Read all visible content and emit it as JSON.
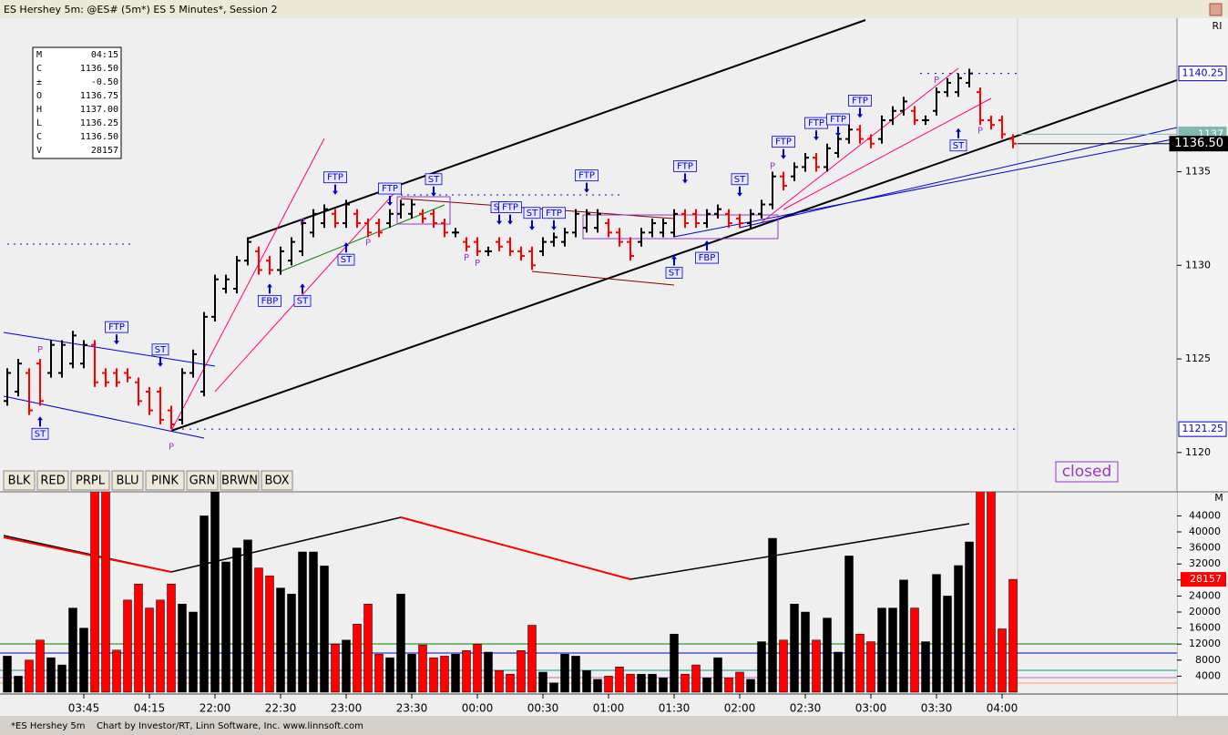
{
  "window_title": "ES Hershey 5m: @ES# (5m*) ES 5 Minutes*, Session 2",
  "tab": "*ES Hershey 5m",
  "credit": "Chart by Investor/RT, Linn Software, Inc. www.linnsoft.com",
  "pane_tags": [
    "RI",
    "M"
  ],
  "status": "closed",
  "buttons": [
    "BLK",
    "RED",
    "PRPL",
    "BLU",
    "PINK",
    "GRN",
    "BRWN",
    "BOX"
  ],
  "info_box": [
    [
      "M",
      "04:15"
    ],
    [
      "C",
      "1136.50"
    ],
    [
      "±",
      "-0.50"
    ],
    [
      "O",
      "1136.75"
    ],
    [
      "H",
      "1137.00"
    ],
    [
      "L",
      "1136.25"
    ],
    [
      "C",
      "1136.50"
    ],
    [
      "V",
      "28157"
    ]
  ],
  "chart_data": [
    {
      "type": "ohlc",
      "up_color": "#000000",
      "down_color": "#ff0000",
      "ylim": [
        1117.9,
        1143.2
      ],
      "yticks": [
        1120,
        1125,
        1130,
        1135
      ],
      "open": [
        1122.75,
        1123.25,
        1124.25,
        1124.75,
        1124.25,
        1124.25,
        1124.75,
        1124.75,
        1125.75,
        1124.25,
        1124.25,
        1124.25,
        1123.75,
        1123.25,
        1123.25,
        1122.25,
        1121.75,
        1124.25,
        1123.25,
        1127.25,
        1128.75,
        1128.75,
        1130.25,
        1130.75,
        1130.25,
        1129.75,
        1130.25,
        1130.75,
        1131.75,
        1132.25,
        1132.75,
        1132.25,
        1132.75,
        1132.25,
        1132.25,
        1132.25,
        1132.75,
        1132.75,
        1132.75,
        1132.75,
        1132.25,
        1131.75,
        1131.25,
        1131.25,
        1130.75,
        1131.25,
        1131.25,
        1130.75,
        1130.75,
        1130.75,
        1131.25,
        1131.25,
        1131.75,
        1132,
        1132,
        1132.25,
        1131.75,
        1131.25,
        1131.25,
        1131.75,
        1131.75,
        1131.75,
        1132.75,
        1132.75,
        1132.25,
        1132.75,
        1132.75,
        1132.5,
        1132.25,
        1132.75,
        1133.25,
        1134.75,
        1134.75,
        1135.25,
        1135.75,
        1135.25,
        1136,
        1136.75,
        1137.25,
        1136.75,
        1136.75,
        1137.75,
        1138.25,
        1138.25,
        1137.75,
        1138.25,
        1139.25,
        1139.25,
        1139.75,
        1139.25,
        1137.75,
        1137.75,
        1136.75
      ],
      "high": [
        1124.5,
        1125,
        1124.5,
        1125,
        1126,
        1126,
        1126.5,
        1126,
        1126,
        1124.5,
        1124.5,
        1124.5,
        1124,
        1123.5,
        1123.5,
        1122.5,
        1124.5,
        1125.5,
        1127.5,
        1129.5,
        1129.5,
        1130.5,
        1131.5,
        1131,
        1130.5,
        1131,
        1131.5,
        1132.5,
        1133,
        1133.25,
        1133,
        1133.5,
        1133,
        1132.5,
        1132.5,
        1133,
        1133.5,
        1133.5,
        1133,
        1133,
        1132.5,
        1132,
        1131.5,
        1131.5,
        1131,
        1131.5,
        1131.5,
        1131,
        1131,
        1131.5,
        1131.75,
        1132,
        1133,
        1133,
        1133,
        1132.5,
        1132,
        1131.5,
        1132,
        1132.5,
        1132.5,
        1133,
        1133,
        1133,
        1133,
        1133.25,
        1133,
        1132.75,
        1133,
        1133.5,
        1135,
        1135,
        1135.5,
        1136,
        1136,
        1136.5,
        1137,
        1137.5,
        1137.5,
        1137,
        1138,
        1138.5,
        1139,
        1138.5,
        1138,
        1139.5,
        1140,
        1140.25,
        1140.5,
        1139.5,
        1138,
        1138,
        1137
      ],
      "low": [
        1122.5,
        1123,
        1122,
        1122.5,
        1124,
        1124,
        1124.5,
        1124.5,
        1123.5,
        1123.5,
        1123.5,
        1123.75,
        1122.5,
        1122,
        1121.5,
        1121.25,
        1121.5,
        1124,
        1123,
        1127,
        1128.5,
        1128.5,
        1130,
        1129.5,
        1129.5,
        1129.5,
        1130,
        1130.5,
        1131.5,
        1132,
        1132,
        1132,
        1132,
        1131.5,
        1131.5,
        1132,
        1132.5,
        1132.5,
        1132.25,
        1132,
        1131.5,
        1131.5,
        1130.75,
        1130.5,
        1130.5,
        1130.75,
        1130.5,
        1130.25,
        1129.75,
        1130.5,
        1131,
        1131,
        1131.5,
        1131.75,
        1131.75,
        1131.5,
        1131,
        1130.25,
        1131,
        1131.5,
        1131.5,
        1131.5,
        1132,
        1132,
        1132,
        1132.5,
        1132,
        1132,
        1132,
        1132.5,
        1133,
        1134,
        1134.5,
        1135,
        1135,
        1135,
        1135.75,
        1136.5,
        1136.5,
        1136.25,
        1136.5,
        1137.5,
        1138,
        1137.5,
        1137.5,
        1138,
        1139,
        1139,
        1139.5,
        1137.5,
        1137.25,
        1136.75,
        1136.25
      ],
      "close": [
        1124.25,
        1124.75,
        1122.25,
        1122.75,
        1125.75,
        1125.75,
        1126.25,
        1125.75,
        1123.75,
        1123.75,
        1123.75,
        1124,
        1122.75,
        1122.25,
        1121.75,
        1121.5,
        1124.25,
        1125.25,
        1127.25,
        1129.25,
        1129.25,
        1130.25,
        1131.25,
        1129.75,
        1129.75,
        1130.75,
        1131.25,
        1132.25,
        1132.75,
        1133,
        1132.25,
        1133.25,
        1132.25,
        1131.75,
        1131.75,
        1132.75,
        1133.25,
        1133.25,
        1132.5,
        1132.25,
        1131.75,
        1131.75,
        1131,
        1130.75,
        1130.75,
        1131,
        1130.75,
        1130.5,
        1130,
        1131.25,
        1131.5,
        1131.75,
        1132.75,
        1132.75,
        1132.75,
        1131.75,
        1131.25,
        1130.5,
        1131.75,
        1132.25,
        1132.25,
        1132.75,
        1132.25,
        1132.25,
        1132.75,
        1133,
        1132.25,
        1132.25,
        1132.75,
        1133.25,
        1134.75,
        1134.25,
        1135.25,
        1135.75,
        1135.25,
        1136.25,
        1136.75,
        1137.25,
        1136.75,
        1136.5,
        1137.75,
        1138.25,
        1138.75,
        1137.75,
        1137.75,
        1139.25,
        1139.75,
        1140,
        1140.25,
        1137.75,
        1137.5,
        1137,
        1136.5
      ],
      "price_markers": [
        {
          "value": 1140.25,
          "label": "1140.25"
        },
        {
          "value": 1137,
          "label": "1137"
        },
        {
          "value": 1136.5,
          "label": "1136.50"
        },
        {
          "value": 1121.25,
          "label": "1121.25"
        }
      ],
      "annotations": [
        {
          "text": "ST",
          "bar": 3,
          "price": 1121.0,
          "arrow": "up"
        },
        {
          "text": "P",
          "bar": 3,
          "price": 1125.5
        },
        {
          "text": "FTP",
          "bar": 10,
          "price": 1126.7,
          "arrow": "down"
        },
        {
          "text": "ST",
          "bar": 14,
          "price": 1125.5,
          "arrow": "down"
        },
        {
          "text": "P",
          "bar": 15,
          "price": 1120.3
        },
        {
          "text": "FBP",
          "bar": 24,
          "price": 1128.1,
          "arrow": "up"
        },
        {
          "text": "ST",
          "bar": 27,
          "price": 1128.1,
          "arrow": "up"
        },
        {
          "text": "P",
          "bar": 27,
          "price": 1132.3
        },
        {
          "text": "FTP",
          "bar": 30,
          "price": 1134.7,
          "arrow": "down"
        },
        {
          "text": "ST",
          "bar": 31,
          "price": 1130.3,
          "arrow": "up"
        },
        {
          "text": "P",
          "bar": 33,
          "price": 1131.2
        },
        {
          "text": "FTP",
          "bar": 35,
          "price": 1134.1,
          "arrow": "down"
        },
        {
          "text": "ST",
          "bar": 39,
          "price": 1134.6,
          "arrow": "down"
        },
        {
          "text": "P",
          "bar": 42,
          "price": 1130.4
        },
        {
          "text": "P",
          "bar": 43,
          "price": 1130.1
        },
        {
          "text": "ST",
          "bar": 45,
          "price": 1133.1,
          "arrow": "down"
        },
        {
          "text": "FTP",
          "bar": 46,
          "price": 1133.1,
          "arrow": "down"
        },
        {
          "text": "ST",
          "bar": 48,
          "price": 1132.8,
          "arrow": "down"
        },
        {
          "text": "FTP",
          "bar": 50,
          "price": 1132.8,
          "arrow": "down"
        },
        {
          "text": "FTP",
          "bar": 53,
          "price": 1134.8,
          "arrow": "down"
        },
        {
          "text": "ST",
          "bar": 61,
          "price": 1129.6,
          "arrow": "up"
        },
        {
          "text": "FTP",
          "bar": 62,
          "price": 1135.3,
          "arrow": "down"
        },
        {
          "text": "FBP",
          "bar": 64,
          "price": 1130.4,
          "arrow": "up"
        },
        {
          "text": "ST",
          "bar": 67,
          "price": 1134.6,
          "arrow": "down"
        },
        {
          "text": "P",
          "bar": 70,
          "price": 1135.3
        },
        {
          "text": "FTP",
          "bar": 71,
          "price": 1136.6,
          "arrow": "down"
        },
        {
          "text": "FTP",
          "bar": 74,
          "price": 1137.6,
          "arrow": "down"
        },
        {
          "text": "FTP",
          "bar": 76,
          "price": 1137.8,
          "arrow": "down"
        },
        {
          "text": "FTP",
          "bar": 78,
          "price": 1138.8,
          "arrow": "down"
        },
        {
          "text": "P",
          "bar": 85,
          "price": 1139.9
        },
        {
          "text": "ST",
          "bar": 87,
          "price": 1136.4,
          "arrow": "up"
        },
        {
          "text": "P",
          "bar": 89,
          "price": 1137.2
        }
      ]
    },
    {
      "type": "bar",
      "ylim": [
        0,
        50000
      ],
      "yticks": [
        4000,
        8000,
        12000,
        16000,
        20000,
        24000,
        28000,
        32000,
        36000,
        40000,
        44000
      ],
      "categories": [
        null,
        null,
        null,
        null,
        null,
        null,
        null,
        "03:45",
        null,
        null,
        null,
        null,
        null,
        "04:15",
        null,
        null,
        null,
        null,
        null,
        "22:00",
        null,
        null,
        null,
        null,
        null,
        "22:30",
        null,
        null,
        null,
        null,
        null,
        "23:00",
        null,
        null,
        null,
        null,
        null,
        "23:30",
        null,
        null,
        null,
        null,
        null,
        "00:00",
        null,
        null,
        null,
        null,
        null,
        "00:30",
        null,
        null,
        null,
        null,
        null,
        "01:00",
        null,
        null,
        null,
        null,
        null,
        "01:30",
        null,
        null,
        null,
        null,
        null,
        "02:00",
        null,
        null,
        null,
        null,
        null,
        "02:30",
        null,
        null,
        null,
        null,
        null,
        "03:00",
        null,
        null,
        null,
        null,
        null,
        "03:30",
        null,
        null,
        null,
        null,
        null,
        "04:00",
        null
      ],
      "values": [
        9000,
        4000,
        8000,
        13000,
        8600,
        6800,
        21000,
        16000,
        52000,
        52000,
        10500,
        23000,
        27000,
        21000,
        23000,
        27000,
        22000,
        20000,
        44000,
        50000,
        32500,
        36000,
        38000,
        31000,
        29000,
        26000,
        24500,
        35000,
        35000,
        31500,
        12000,
        13000,
        17000,
        22000,
        9500,
        8600,
        24500,
        9500,
        11800,
        8600,
        9000,
        9500,
        10400,
        12000,
        10000,
        5400,
        4500,
        10400,
        16700,
        5000,
        2300,
        9500,
        9000,
        5400,
        3200,
        4000,
        6300,
        4500,
        4500,
        4500,
        3600,
        14500,
        4500,
        6800,
        3600,
        8600,
        3600,
        5000,
        3200,
        12600,
        38400,
        13000,
        22000,
        20000,
        13000,
        18500,
        10000,
        34000,
        14500,
        12600,
        21000,
        21000,
        28000,
        21000,
        12600,
        29400,
        24000,
        31600,
        37500,
        52000,
        52000,
        15800,
        28157
      ],
      "marker": 28157
    }
  ]
}
